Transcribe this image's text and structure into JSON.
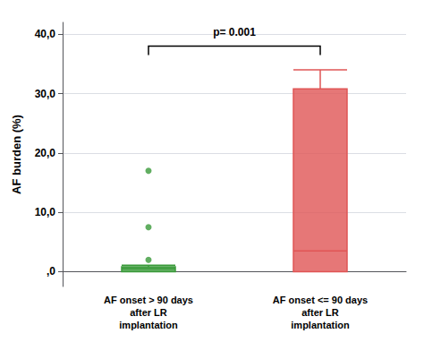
{
  "chart_data": {
    "type": "boxplot",
    "categories": [
      "AF onset > 90 days\nafter LR\nimplantation",
      "AF onset <= 90 days\nafter LR\nimplantation"
    ],
    "colors": [
      "#3a9a3a",
      "#e05555"
    ],
    "boxes": [
      {
        "q1": 0.0,
        "median": 0.5,
        "q3": 0.8,
        "whisker_low": 0.0,
        "whisker_high": 1.1,
        "outliers": [
          2.0,
          7.5,
          17.0
        ]
      },
      {
        "q1": 0.0,
        "median": 3.5,
        "q3": 30.8,
        "whisker_low": 0.0,
        "whisker_high": 34.0,
        "outliers": []
      }
    ],
    "ylabel": "AF burden (%)",
    "ylim": [
      -2.5,
      42
    ],
    "yticks": [
      {
        "value": 0.0,
        "label": ",0"
      },
      {
        "value": 10.0,
        "label": "10,0"
      },
      {
        "value": 20.0,
        "label": "20,0"
      },
      {
        "value": 30.0,
        "label": "30,0"
      },
      {
        "value": 40.0,
        "label": "40,0"
      }
    ],
    "grid": true,
    "annotations": [
      {
        "text": "p= 0.001",
        "y": 39.5
      }
    ],
    "bracket": {
      "y": 38.0,
      "drop": 1.5
    }
  }
}
